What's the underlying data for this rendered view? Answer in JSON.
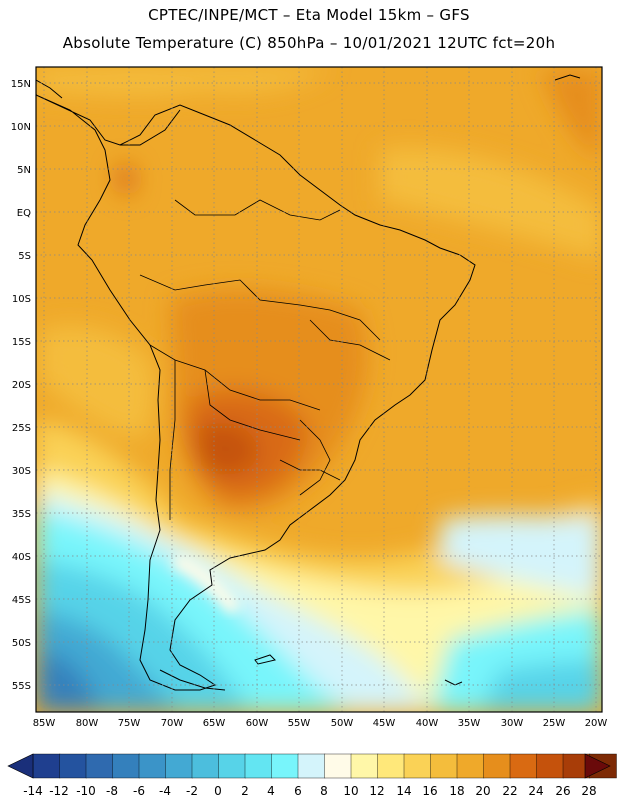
{
  "header": {
    "title_line1": "CPTEC/INPE/MCT –  Eta Model 15km – GFS",
    "title_line2": "Absolute Temperature (C) 850hPa – 10/01/2021 12UTC fct=20h"
  },
  "map": {
    "lat_labels": [
      "15N",
      "10N",
      "5N",
      "EQ",
      "5S",
      "10S",
      "15S",
      "20S",
      "25S",
      "30S",
      "35S",
      "40S",
      "45S",
      "50S",
      "55S"
    ],
    "lon_labels": [
      "85W",
      "80W",
      "75W",
      "70W",
      "65W",
      "60W",
      "55W",
      "50W",
      "45W",
      "40W",
      "35W",
      "30W",
      "25W",
      "20W"
    ]
  },
  "colorbar": {
    "labels": [
      "-14",
      "-12",
      "-10",
      "-8",
      "-6",
      "-4",
      "-2",
      "0",
      "2",
      "4",
      "6",
      "8",
      "10",
      "12",
      "14",
      "16",
      "18",
      "20",
      "22",
      "24",
      "26",
      "28"
    ],
    "colors": [
      "#1f3f8f",
      "#24539f",
      "#2f6aaf",
      "#3480bc",
      "#3b94c8",
      "#43a9d3",
      "#4cbedd",
      "#57d3e8",
      "#63e5f2",
      "#78f5fb",
      "#d4f4fb",
      "#fffbe8",
      "#fff7a8",
      "#ffe87a",
      "#fad256",
      "#f4bd3c",
      "#efa92a",
      "#e68e1c",
      "#d96a12",
      "#c5520c",
      "#a83d08",
      "#7d2a05"
    ],
    "low_arrow_color": "#1a2f7a",
    "high_arrow_color": "#6a0a0a"
  }
}
